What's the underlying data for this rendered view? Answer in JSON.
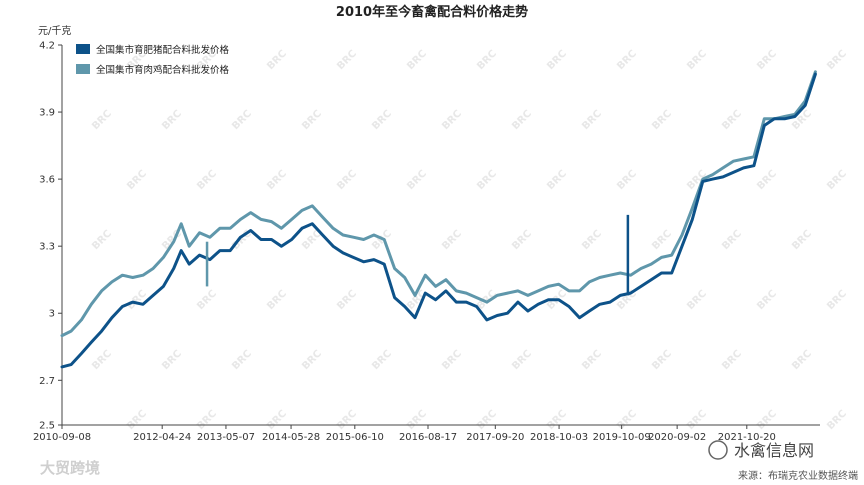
{
  "chart_data": {
    "type": "line",
    "title": "2010年至今畜禽配合料价格走势",
    "ylabel": "元/千克",
    "ylim": [
      2.5,
      4.2
    ],
    "yticks": [
      "2.5",
      "2.7",
      "3",
      "3.3",
      "3.6",
      "3.9",
      "4.2"
    ],
    "xlim": [
      "2010-09-08",
      "2022-12-28"
    ],
    "xticks": [
      "2010-09-08",
      "2012-04-24",
      "2013-05-07",
      "2014-05-28",
      "2015-06-10",
      "2016-08-17",
      "2017-09-20",
      "2018-10-03",
      "2019-10-09",
      "2020-09-02",
      "2021-10-20"
    ],
    "grid": false,
    "legend_position": "top-left",
    "series": [
      {
        "name": "全国集市育肥猪配合料批发价格",
        "color": "#0d5289",
        "x": [
          "2010-09-08",
          "2010-11-01",
          "2011-01-01",
          "2011-03-01",
          "2011-05-01",
          "2011-07-01",
          "2011-09-01",
          "2011-11-01",
          "2012-01-01",
          "2012-03-01",
          "2012-05-01",
          "2012-07-01",
          "2012-08-15",
          "2012-10-01",
          "2012-12-01",
          "2013-02-01",
          "2013-04-01",
          "2013-06-01",
          "2013-08-01",
          "2013-10-01",
          "2013-12-01",
          "2014-02-01",
          "2014-04-01",
          "2014-06-01",
          "2014-08-01",
          "2014-10-01",
          "2014-12-01",
          "2015-02-01",
          "2015-04-01",
          "2015-06-01",
          "2015-08-01",
          "2015-10-01",
          "2015-12-01",
          "2016-02-01",
          "2016-04-01",
          "2016-06-01",
          "2016-08-01",
          "2016-10-01",
          "2016-12-01",
          "2017-02-01",
          "2017-04-01",
          "2017-06-01",
          "2017-08-01",
          "2017-10-01",
          "2017-12-01",
          "2018-02-01",
          "2018-04-01",
          "2018-06-01",
          "2018-08-01",
          "2018-10-01",
          "2018-12-01",
          "2019-02-01",
          "2019-04-01",
          "2019-06-01",
          "2019-08-01",
          "2019-10-01",
          "2019-12-01",
          "2020-02-01",
          "2020-04-01",
          "2020-06-01",
          "2020-08-01",
          "2020-10-01",
          "2020-12-01",
          "2021-02-01",
          "2021-04-01",
          "2021-06-01",
          "2021-08-01",
          "2021-10-01",
          "2021-12-01",
          "2022-02-01",
          "2022-04-01",
          "2022-06-01",
          "2022-08-01",
          "2022-10-01",
          "2022-12-01"
        ],
        "values": [
          2.76,
          2.77,
          2.82,
          2.87,
          2.92,
          2.98,
          3.03,
          3.05,
          3.04,
          3.08,
          3.12,
          3.2,
          3.28,
          3.22,
          3.26,
          3.24,
          3.28,
          3.28,
          3.34,
          3.37,
          3.33,
          3.33,
          3.3,
          3.33,
          3.38,
          3.4,
          3.35,
          3.3,
          3.27,
          3.25,
          3.23,
          3.24,
          3.22,
          3.07,
          3.03,
          2.98,
          3.09,
          3.06,
          3.1,
          3.05,
          3.05,
          3.03,
          2.97,
          2.99,
          3.0,
          3.05,
          3.01,
          3.04,
          3.06,
          3.06,
          3.03,
          2.98,
          3.01,
          3.04,
          3.05,
          3.08,
          3.09,
          3.12,
          3.15,
          3.18,
          3.18,
          3.3,
          3.42,
          3.59,
          3.6,
          3.61,
          3.63,
          3.65,
          3.66,
          3.84,
          3.87,
          3.87,
          3.88,
          3.93,
          4.07
        ]
      },
      {
        "name": "全国集市育肉鸡配合料批发价格",
        "color": "#5f97ab",
        "x": [
          "2010-09-08",
          "2010-11-01",
          "2011-01-01",
          "2011-03-01",
          "2011-05-01",
          "2011-07-01",
          "2011-09-01",
          "2011-11-01",
          "2012-01-01",
          "2012-03-01",
          "2012-05-01",
          "2012-07-01",
          "2012-08-15",
          "2012-10-01",
          "2012-12-01",
          "2013-02-01",
          "2013-04-01",
          "2013-06-01",
          "2013-08-01",
          "2013-10-01",
          "2013-12-01",
          "2014-02-01",
          "2014-04-01",
          "2014-06-01",
          "2014-08-01",
          "2014-10-01",
          "2014-12-01",
          "2015-02-01",
          "2015-04-01",
          "2015-06-01",
          "2015-08-01",
          "2015-10-01",
          "2015-12-01",
          "2016-02-01",
          "2016-04-01",
          "2016-06-01",
          "2016-08-01",
          "2016-10-01",
          "2016-12-01",
          "2017-02-01",
          "2017-04-01",
          "2017-06-01",
          "2017-08-01",
          "2017-10-01",
          "2017-12-01",
          "2018-02-01",
          "2018-04-01",
          "2018-06-01",
          "2018-08-01",
          "2018-10-01",
          "2018-12-01",
          "2019-02-01",
          "2019-04-01",
          "2019-06-01",
          "2019-08-01",
          "2019-10-01",
          "2019-12-01",
          "2020-02-01",
          "2020-04-01",
          "2020-06-01",
          "2020-08-01",
          "2020-10-01",
          "2020-12-01",
          "2021-02-01",
          "2021-04-01",
          "2021-06-01",
          "2021-08-01",
          "2021-10-01",
          "2021-12-01",
          "2022-02-01",
          "2022-04-01",
          "2022-06-01",
          "2022-08-01",
          "2022-10-01",
          "2022-12-01"
        ],
        "values": [
          2.9,
          2.92,
          2.97,
          3.04,
          3.1,
          3.14,
          3.17,
          3.16,
          3.17,
          3.2,
          3.25,
          3.32,
          3.4,
          3.3,
          3.36,
          3.34,
          3.38,
          3.38,
          3.42,
          3.45,
          3.42,
          3.41,
          3.38,
          3.42,
          3.46,
          3.48,
          3.43,
          3.38,
          3.35,
          3.34,
          3.33,
          3.35,
          3.33,
          3.2,
          3.16,
          3.08,
          3.17,
          3.12,
          3.15,
          3.1,
          3.09,
          3.07,
          3.05,
          3.08,
          3.09,
          3.1,
          3.08,
          3.1,
          3.12,
          3.13,
          3.1,
          3.1,
          3.14,
          3.16,
          3.17,
          3.18,
          3.17,
          3.2,
          3.22,
          3.25,
          3.26,
          3.35,
          3.47,
          3.6,
          3.62,
          3.65,
          3.68,
          3.69,
          3.7,
          3.87,
          3.87,
          3.88,
          3.89,
          3.95,
          4.08
        ]
      }
    ],
    "spikes": [
      {
        "series": 1,
        "x": "2013-01-15",
        "from": 3.32,
        "to": 3.12
      },
      {
        "series": 0,
        "x": "2019-11-15",
        "from": 3.08,
        "to": 3.44
      }
    ]
  },
  "watermark": "BRC",
  "footer": {
    "left_text": "大贸跨境",
    "right_text": "水禽信息网",
    "source": "来源：布瑞克农业数据终端"
  }
}
